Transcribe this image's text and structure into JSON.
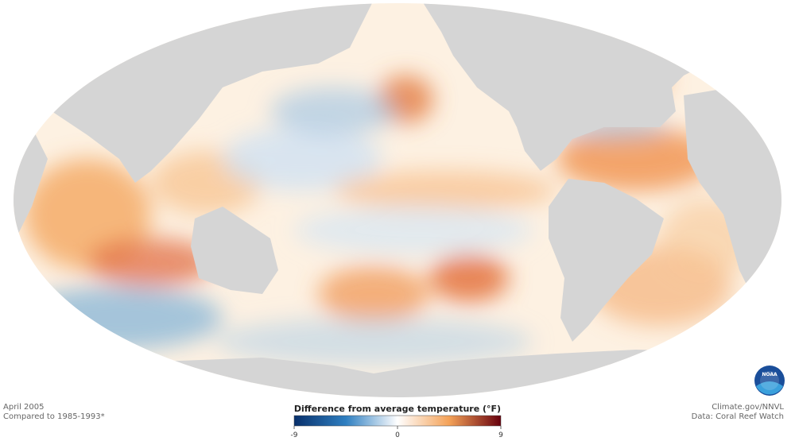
{
  "caption": {
    "date": "April 2005",
    "baseline": "Compared to 1985-1993*"
  },
  "legend": {
    "title": "Difference from average temperature (°F)",
    "range": [
      -9,
      9
    ],
    "ticks": [
      -9,
      0,
      9
    ],
    "colors": [
      "#08306b",
      "#2f7fc1",
      "#ffffff",
      "#f4a258",
      "#67000d"
    ]
  },
  "credits": {
    "site": "Climate.gov/NNVL",
    "source": "Data: Coral Reef Watch",
    "logo": "NOAA"
  }
}
